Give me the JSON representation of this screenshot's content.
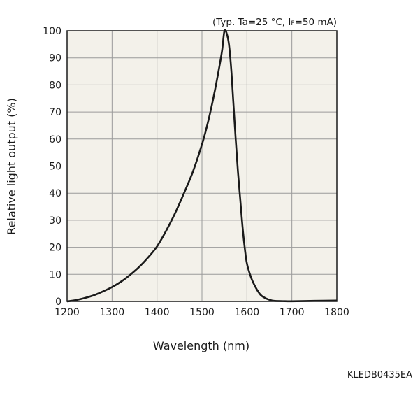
{
  "chart_data": {
    "type": "line",
    "title": "",
    "conditions": {
      "prefix": "(Typ. Ta=25 °C, I",
      "subscript": "F",
      "suffix": "=50 mA)"
    },
    "xlabel": "Wavelength (nm)",
    "ylabel": "Relative light output (%)",
    "xlim": [
      1200,
      1800
    ],
    "ylim": [
      0,
      100
    ],
    "xticks": [
      1200,
      1300,
      1400,
      1500,
      1600,
      1700,
      1800
    ],
    "yticks": [
      0,
      10,
      20,
      30,
      40,
      50,
      60,
      70,
      80,
      90,
      100
    ],
    "grid": true,
    "colors": {
      "background": "#f3f1ea",
      "grid": "#9a9a9a",
      "line": "#1a1a1a",
      "frame": "#1a1a1a"
    },
    "series": [
      {
        "x": [
          1200,
          1220,
          1240,
          1260,
          1280,
          1300,
          1320,
          1340,
          1360,
          1380,
          1400,
          1420,
          1440,
          1460,
          1480,
          1500,
          1510,
          1520,
          1530,
          1540,
          1545,
          1550,
          1555,
          1560,
          1565,
          1570,
          1575,
          1580,
          1585,
          1590,
          1595,
          1600,
          1610,
          1620,
          1630,
          1640,
          1650,
          1660,
          1680,
          1700,
          1750,
          1800
        ],
        "values": [
          0,
          0.5,
          1.3,
          2.3,
          3.7,
          5.3,
          7.3,
          9.8,
          12.7,
          16.2,
          20.3,
          26,
          32.5,
          40,
          48,
          58,
          64,
          71,
          79,
          88,
          93,
          100,
          99,
          95,
          86,
          73,
          60,
          48,
          38,
          28,
          20,
          14,
          8.5,
          5,
          2.5,
          1.3,
          0.6,
          0.2,
          0.1,
          0.05,
          0.2,
          0.3
        ]
      }
    ]
  },
  "doc_code": "KLEDB0435EA"
}
